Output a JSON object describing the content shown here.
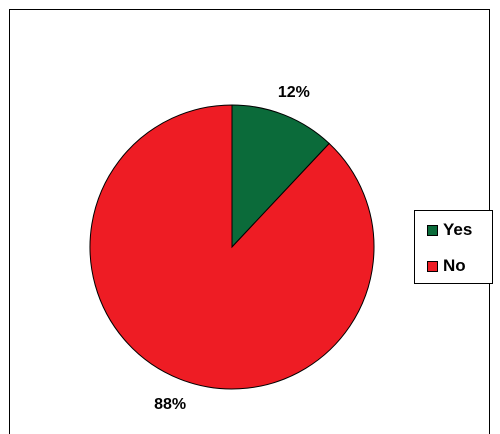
{
  "chart_data": {
    "type": "pie",
    "categories": [
      "Yes",
      "No"
    ],
    "values": [
      12,
      88
    ],
    "labels": [
      "12%",
      "88%"
    ],
    "colors": [
      "#0b6b3a",
      "#ee1c24"
    ],
    "title": "",
    "legend_position": "right"
  }
}
